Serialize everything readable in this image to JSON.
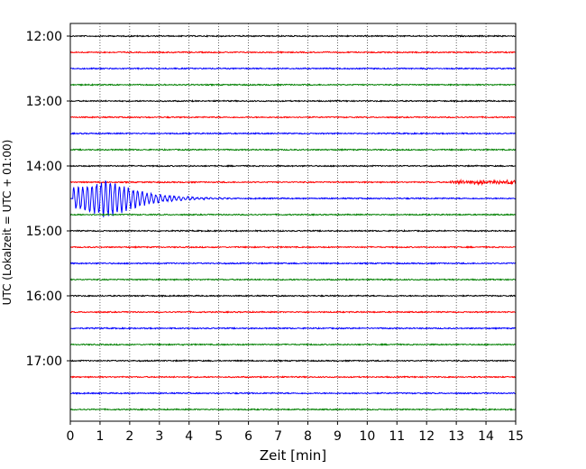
{
  "chart_data": {
    "type": "line",
    "title": "",
    "xlabel": "Zeit  [min]",
    "ylabel": "UTC (Lokalzeit = UTC + 01:00)",
    "xlim": [
      0,
      15
    ],
    "x_ticks": [
      0,
      1,
      2,
      3,
      4,
      5,
      6,
      7,
      8,
      9,
      10,
      11,
      12,
      13,
      14,
      15
    ],
    "y_ticks": [
      "12:00",
      "13:00",
      "14:00",
      "15:00",
      "16:00",
      "17:00"
    ],
    "grid": "vertical-dotted",
    "trace_interval_minutes": 15,
    "trace_colors_cycle": [
      "#000000",
      "#ff0000",
      "#0000ff",
      "#008000"
    ],
    "series": [
      {
        "start": "12:00",
        "color": "#000000"
      },
      {
        "start": "12:15",
        "color": "#ff0000"
      },
      {
        "start": "12:30",
        "color": "#0000ff"
      },
      {
        "start": "12:45",
        "color": "#008000"
      },
      {
        "start": "13:00",
        "color": "#000000"
      },
      {
        "start": "13:15",
        "color": "#ff0000"
      },
      {
        "start": "13:30",
        "color": "#0000ff"
      },
      {
        "start": "13:45",
        "color": "#008000"
      },
      {
        "start": "14:00",
        "color": "#000000"
      },
      {
        "start": "14:15",
        "color": "#ff0000",
        "burst_minutes": [
          12.8,
          15.0
        ],
        "burst_amplitude": 0.3
      },
      {
        "start": "14:30",
        "color": "#0000ff",
        "event_onset_minutes": 0.1,
        "event_peak_minutes": 1.4,
        "event_decay_end_minutes": 6.0,
        "event_amplitude": 1.4
      },
      {
        "start": "14:45",
        "color": "#008000"
      },
      {
        "start": "15:00",
        "color": "#000000"
      },
      {
        "start": "15:15",
        "color": "#ff0000"
      },
      {
        "start": "15:30",
        "color": "#0000ff"
      },
      {
        "start": "15:45",
        "color": "#008000"
      },
      {
        "start": "16:00",
        "color": "#000000"
      },
      {
        "start": "16:15",
        "color": "#ff0000"
      },
      {
        "start": "16:30",
        "color": "#0000ff"
      },
      {
        "start": "16:45",
        "color": "#008000"
      },
      {
        "start": "17:00",
        "color": "#000000"
      },
      {
        "start": "17:15",
        "color": "#ff0000"
      },
      {
        "start": "17:30",
        "color": "#0000ff"
      },
      {
        "start": "17:45",
        "color": "#008000"
      }
    ]
  }
}
